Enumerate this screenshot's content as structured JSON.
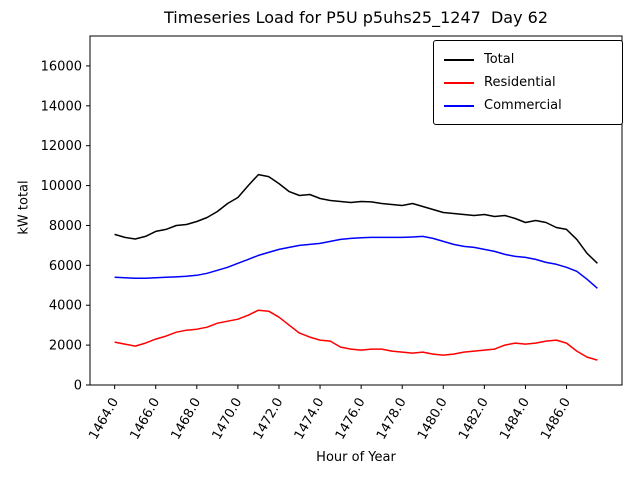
{
  "title": "Timeseries Load for P5U p5uhs25_1247  Day 62",
  "chart_data": {
    "type": "line",
    "title": "Timeseries Load for P5U p5uhs25_1247  Day 62",
    "xlabel": "Hour of Year",
    "ylabel": "kW total",
    "xlim": [
      1462.8,
      1488.7
    ],
    "ylim": [
      0,
      17500
    ],
    "grid": false,
    "legend_position": "upper right",
    "xticks": [
      1464,
      1466,
      1468,
      1470,
      1472,
      1474,
      1476,
      1478,
      1480,
      1482,
      1484,
      1486
    ],
    "xtick_labels": [
      "1464.0",
      "1466.0",
      "1468.0",
      "1470.0",
      "1472.0",
      "1474.0",
      "1476.0",
      "1478.0",
      "1480.0",
      "1482.0",
      "1484.0",
      "1486.0"
    ],
    "yticks": [
      0,
      2000,
      4000,
      6000,
      8000,
      10000,
      12000,
      14000,
      16000
    ],
    "ytick_labels": [
      "0",
      "2000",
      "4000",
      "6000",
      "8000",
      "10000",
      "12000",
      "14000",
      "16000"
    ],
    "x": [
      1464.0,
      1464.5,
      1465.0,
      1465.5,
      1466.0,
      1466.5,
      1467.0,
      1467.5,
      1468.0,
      1468.5,
      1469.0,
      1469.5,
      1470.0,
      1470.5,
      1471.0,
      1471.5,
      1472.0,
      1472.5,
      1473.0,
      1473.5,
      1474.0,
      1474.5,
      1475.0,
      1475.5,
      1476.0,
      1476.5,
      1477.0,
      1477.5,
      1478.0,
      1478.5,
      1479.0,
      1479.5,
      1480.0,
      1480.5,
      1481.0,
      1481.5,
      1482.0,
      1482.5,
      1483.0,
      1483.5,
      1484.0,
      1484.5,
      1485.0,
      1485.5,
      1486.0,
      1486.5,
      1487.0,
      1487.5
    ],
    "series": [
      {
        "name": "Total",
        "color": "#000000",
        "values": [
          7550,
          7400,
          7320,
          7450,
          7700,
          7800,
          8000,
          8050,
          8200,
          8400,
          8700,
          9100,
          9400,
          10000,
          10550,
          10450,
          10100,
          9700,
          9500,
          9550,
          9350,
          9250,
          9200,
          9150,
          9200,
          9180,
          9100,
          9050,
          9000,
          9100,
          8950,
          8800,
          8650,
          8600,
          8550,
          8500,
          8550,
          8450,
          8500,
          8350,
          8150,
          8250,
          8150,
          7900,
          7800,
          7300,
          6600,
          6100
        ]
      },
      {
        "name": "Residential",
        "color": "#ff0000",
        "values": [
          2150,
          2050,
          1950,
          2100,
          2300,
          2450,
          2650,
          2750,
          2800,
          2900,
          3100,
          3200,
          3300,
          3500,
          3750,
          3700,
          3400,
          3000,
          2600,
          2400,
          2250,
          2200,
          1900,
          1800,
          1750,
          1800,
          1800,
          1700,
          1650,
          1600,
          1650,
          1550,
          1500,
          1550,
          1650,
          1700,
          1750,
          1800,
          2000,
          2100,
          2050,
          2100,
          2200,
          2250,
          2100,
          1700,
          1400,
          1250
        ]
      },
      {
        "name": "Commercial",
        "color": "#0000ff",
        "values": [
          5400,
          5380,
          5350,
          5350,
          5380,
          5400,
          5420,
          5450,
          5500,
          5600,
          5750,
          5900,
          6100,
          6300,
          6500,
          6650,
          6800,
          6900,
          7000,
          7050,
          7100,
          7200,
          7300,
          7350,
          7380,
          7400,
          7400,
          7400,
          7400,
          7420,
          7450,
          7350,
          7200,
          7050,
          6950,
          6900,
          6800,
          6700,
          6550,
          6450,
          6400,
          6300,
          6150,
          6050,
          5900,
          5700,
          5300,
          4850
        ]
      }
    ]
  }
}
